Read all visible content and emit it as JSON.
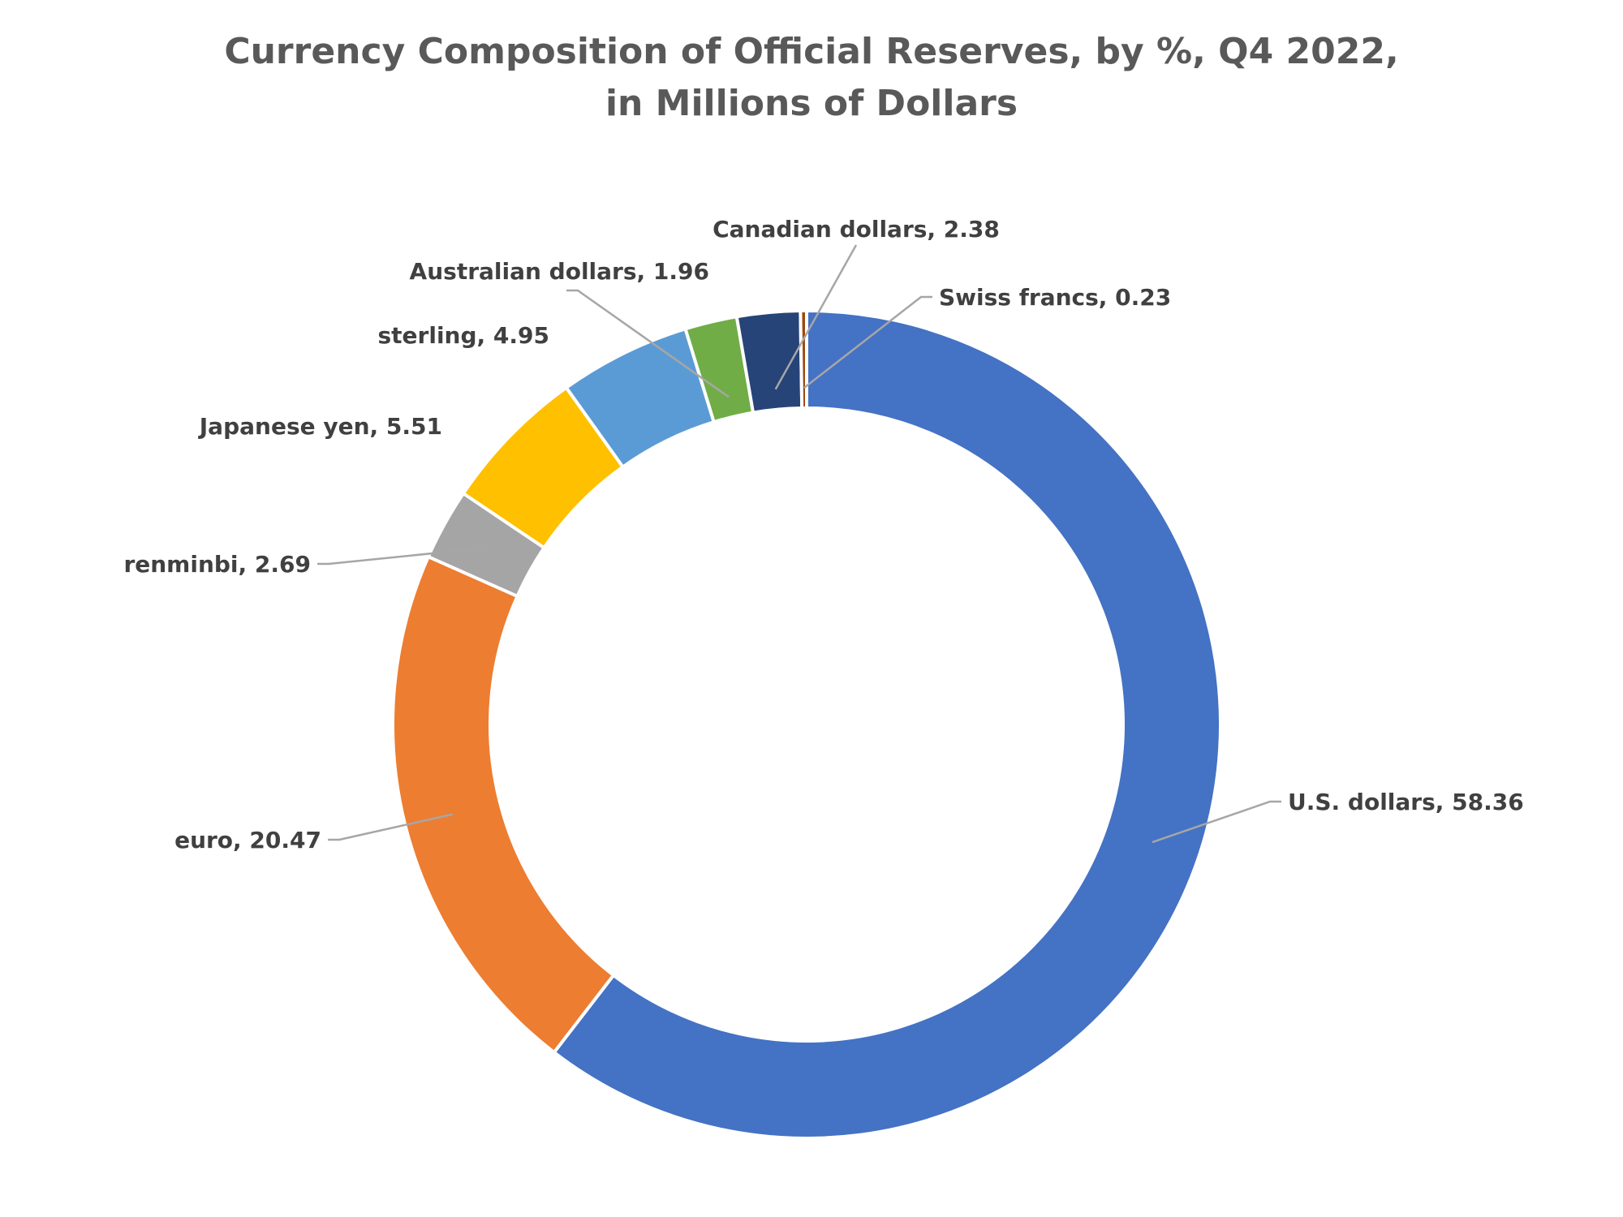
{
  "chart_data": {
    "type": "pie",
    "variant": "donut",
    "title_lines": [
      "Currency Composition of Official Reserves, by %, Q4 2022,",
      "in Millions of Dollars"
    ],
    "legend": "none",
    "slices": [
      {
        "name": "U.S. dollars",
        "value": 58.36,
        "label": "U.S. dollars, 58.36",
        "color": "#4472C4"
      },
      {
        "name": "euro",
        "value": 20.47,
        "label": "euro, 20.47",
        "color": "#ED7D31"
      },
      {
        "name": "renminbi",
        "value": 2.69,
        "label": "renminbi, 2.69",
        "color": "#A5A5A5"
      },
      {
        "name": "Japanese yen",
        "value": 5.51,
        "label": "Japanese yen, 5.51",
        "color": "#FFC000"
      },
      {
        "name": "sterling",
        "value": 4.95,
        "label": "sterling, 4.95",
        "color": "#5B9BD5"
      },
      {
        "name": "Australian dollars",
        "value": 1.96,
        "label": "Australian dollars, 1.96",
        "color": "#70AD47"
      },
      {
        "name": "Canadian dollars",
        "value": 2.38,
        "label": "Canadian dollars, 2.38",
        "color": "#264478"
      },
      {
        "name": "Swiss francs",
        "value": 0.23,
        "label": "Swiss francs, 0.23",
        "color": "#9E480E"
      }
    ]
  }
}
